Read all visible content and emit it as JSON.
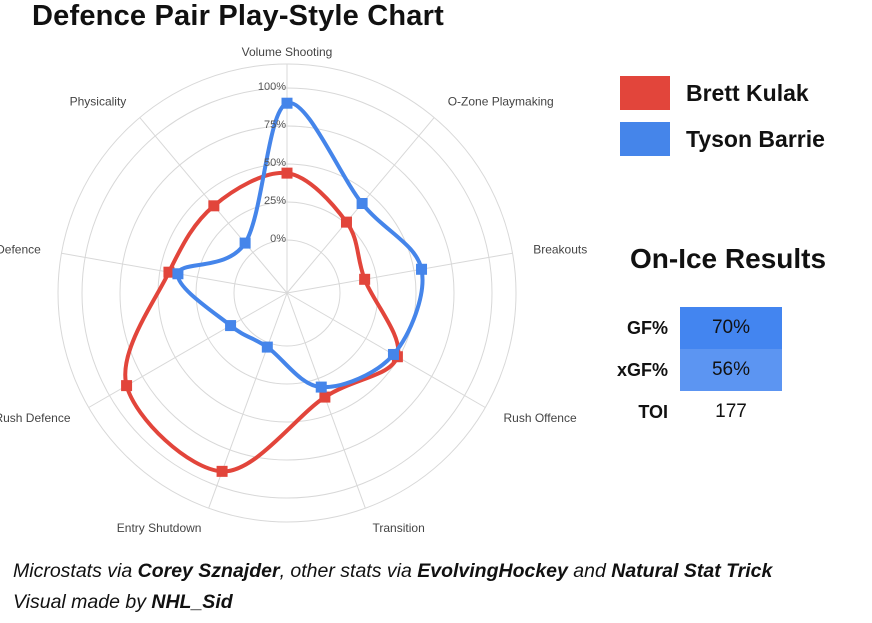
{
  "title": "Defence Pair Play-Style Chart",
  "colors": {
    "kulak": "#e2453b",
    "barrie": "#4585ea",
    "grid": "#d8d8d8",
    "gf_cell": "#4385f0",
    "xgf_cell": "#5c95f2"
  },
  "chart_data": {
    "type": "radar",
    "axes": [
      "Volume Shooting",
      "O-Zone Playmaking",
      "Breakouts",
      "Rush Offence",
      "Transition",
      "Entry Shutdown",
      "Rush Defence",
      "In-Zone Defence",
      "Physicality"
    ],
    "tick_labels": [
      "0%",
      "25%",
      "50%",
      "75%",
      "100%"
    ],
    "rlim": [
      0,
      100
    ],
    "grid": true,
    "legend_position": "right",
    "series": [
      {
        "name": "Brett Kulak",
        "values": [
          44,
          26,
          17,
          49,
          38,
          90,
          87,
          44,
          40
        ]
      },
      {
        "name": "Tyson Barrie",
        "values": [
          90,
          42,
          55,
          46,
          31,
          3,
          8,
          38,
          8
        ]
      }
    ]
  },
  "legend": [
    "Brett Kulak",
    "Tyson Barrie"
  ],
  "results": {
    "title": "On-Ice Results",
    "rows": [
      {
        "label": "GF%",
        "value": "70%"
      },
      {
        "label": "xGF%",
        "value": "56%"
      },
      {
        "label": "TOI",
        "value": "177"
      }
    ]
  },
  "footer": {
    "line1_prefix": "Microstats via ",
    "line1_source1": "Corey Sznajder",
    "line1_mid": ", other stats via ",
    "line1_source2": "EvolvingHockey",
    "line1_and": " and ",
    "line1_source3": "Natural Stat Trick",
    "line2_prefix": "Visual made by ",
    "line2_author": "NHL_Sid"
  }
}
